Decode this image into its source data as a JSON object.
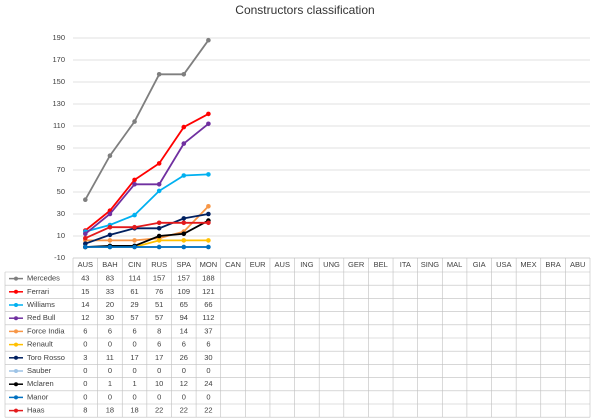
{
  "chart_data": {
    "type": "line",
    "title": "Constructors classification",
    "categories": [
      "AUS",
      "BAH",
      "CIN",
      "RUS",
      "SPA",
      "MON",
      "CAN",
      "EUR",
      "AUS",
      "ING",
      "UNG",
      "GER",
      "BEL",
      "ITA",
      "SING",
      "MAL",
      "GIA",
      "USA",
      "MEX",
      "BRA",
      "ABU"
    ],
    "series": [
      {
        "name": "Mercedes",
        "color": "#7f7f7f",
        "values": [
          43,
          83,
          114,
          157,
          157,
          188,
          null,
          null,
          null,
          null,
          null,
          null,
          null,
          null,
          null,
          null,
          null,
          null,
          null,
          null,
          null
        ]
      },
      {
        "name": "Ferrari",
        "color": "#ff0000",
        "values": [
          15,
          33,
          61,
          76,
          109,
          121,
          null,
          null,
          null,
          null,
          null,
          null,
          null,
          null,
          null,
          null,
          null,
          null,
          null,
          null,
          null
        ]
      },
      {
        "name": "Williams",
        "color": "#00b0f0",
        "values": [
          14,
          20,
          29,
          51,
          65,
          66,
          null,
          null,
          null,
          null,
          null,
          null,
          null,
          null,
          null,
          null,
          null,
          null,
          null,
          null,
          null
        ]
      },
      {
        "name": "Red Bull",
        "color": "#7030a0",
        "values": [
          12,
          30,
          57,
          57,
          94,
          112,
          null,
          null,
          null,
          null,
          null,
          null,
          null,
          null,
          null,
          null,
          null,
          null,
          null,
          null,
          null
        ]
      },
      {
        "name": "Force India",
        "color": "#f79646",
        "values": [
          6,
          6,
          6,
          8,
          14,
          37,
          null,
          null,
          null,
          null,
          null,
          null,
          null,
          null,
          null,
          null,
          null,
          null,
          null,
          null,
          null
        ]
      },
      {
        "name": "Renault",
        "color": "#ffc000",
        "values": [
          0,
          0,
          0,
          6,
          6,
          6,
          null,
          null,
          null,
          null,
          null,
          null,
          null,
          null,
          null,
          null,
          null,
          null,
          null,
          null,
          null
        ]
      },
      {
        "name": "Toro Rosso",
        "color": "#002060",
        "values": [
          3,
          11,
          17,
          17,
          26,
          30,
          null,
          null,
          null,
          null,
          null,
          null,
          null,
          null,
          null,
          null,
          null,
          null,
          null,
          null,
          null
        ]
      },
      {
        "name": "Sauber",
        "color": "#9dc3e6",
        "values": [
          0,
          0,
          0,
          0,
          0,
          0,
          null,
          null,
          null,
          null,
          null,
          null,
          null,
          null,
          null,
          null,
          null,
          null,
          null,
          null,
          null
        ]
      },
      {
        "name": "Mclaren",
        "color": "#000000",
        "values": [
          0,
          1,
          1,
          10,
          12,
          24,
          null,
          null,
          null,
          null,
          null,
          null,
          null,
          null,
          null,
          null,
          null,
          null,
          null,
          null,
          null
        ]
      },
      {
        "name": "Manor",
        "color": "#0070c0",
        "values": [
          0,
          0,
          0,
          0,
          0,
          0,
          null,
          null,
          null,
          null,
          null,
          null,
          null,
          null,
          null,
          null,
          null,
          null,
          null,
          null,
          null
        ]
      },
      {
        "name": "Haas",
        "color": "#e31a1c",
        "values": [
          8,
          18,
          18,
          22,
          22,
          22,
          null,
          null,
          null,
          null,
          null,
          null,
          null,
          null,
          null,
          null,
          null,
          null,
          null,
          null,
          null
        ]
      }
    ],
    "ylim": [
      -10,
      190
    ],
    "yticks": [
      -10,
      10,
      30,
      50,
      70,
      90,
      110,
      130,
      150,
      170,
      190
    ],
    "grid": true
  }
}
